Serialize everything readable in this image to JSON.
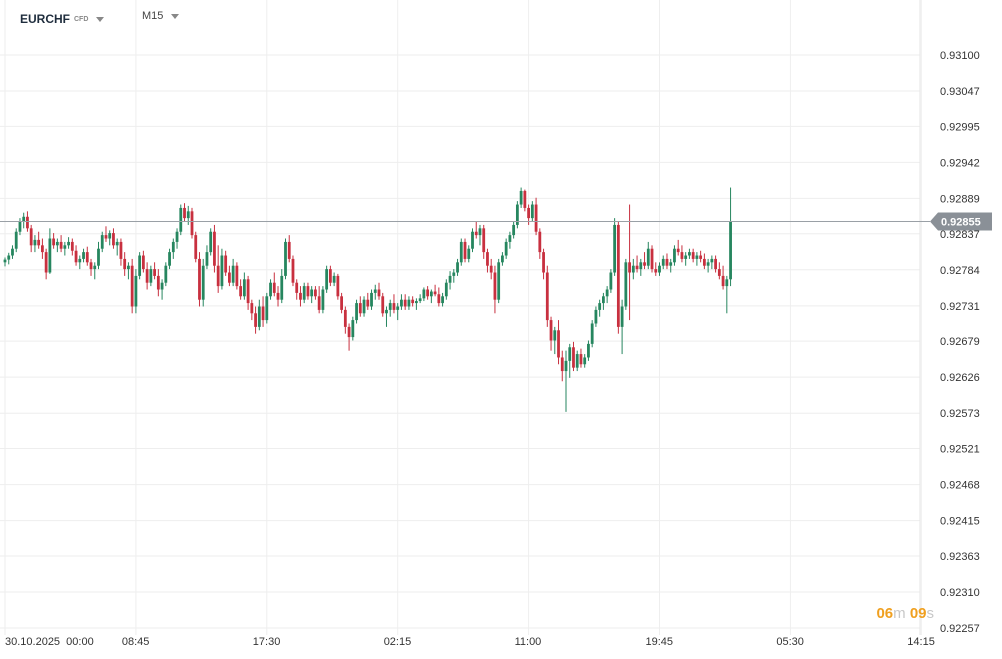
{
  "header": {
    "symbol": "EURCHF",
    "instrument_type": "CFD",
    "timeframe": "M15"
  },
  "countdown": {
    "minutes": "06",
    "m_unit": "m",
    "seconds": "09",
    "s_unit": "s"
  },
  "colors": {
    "up": "#26865f",
    "down": "#c8303f",
    "grid": "#eeeeee",
    "price_line": "#9aa0a6",
    "price_label_bg": "#8a9097",
    "countdown": "#f0a020"
  },
  "chart_data": {
    "type": "candlestick",
    "title": "",
    "xlabel": "",
    "ylabel": "",
    "ylim": [
      0.92231,
      0.93153
    ],
    "y_ticks": [
      "0.93100",
      "0.93047",
      "0.92995",
      "0.92942",
      "0.92889",
      "0.92837",
      "0.92784",
      "0.92731",
      "0.92679",
      "0.92626",
      "0.92573",
      "0.92521",
      "0.92468",
      "0.92415",
      "0.92363",
      "0.92310",
      "0.92257"
    ],
    "x_ticks": [
      {
        "label": "30.10.2025  00:00",
        "index": 0
      },
      {
        "label": "08:45",
        "index": 35
      },
      {
        "label": "17:30",
        "index": 70
      },
      {
        "label": "02:15",
        "index": 105
      },
      {
        "label": "11:00",
        "index": 140
      },
      {
        "label": "19:45",
        "index": 175
      },
      {
        "label": "05:30",
        "index": 210
      },
      {
        "label": "14:15",
        "index": 245
      }
    ],
    "current_price": "0.92855",
    "candles": [
      [
        0.92795,
        0.92802,
        0.92789,
        0.92799
      ],
      [
        0.92799,
        0.92809,
        0.92792,
        0.92805
      ],
      [
        0.92805,
        0.9282,
        0.928,
        0.92815
      ],
      [
        0.92815,
        0.92845,
        0.9281,
        0.9284
      ],
      [
        0.9284,
        0.9286,
        0.92835,
        0.92855
      ],
      [
        0.92855,
        0.92868,
        0.92845,
        0.92862
      ],
      [
        0.92862,
        0.9287,
        0.9284,
        0.92845
      ],
      [
        0.92845,
        0.9285,
        0.9281,
        0.9282
      ],
      [
        0.9282,
        0.92835,
        0.9281,
        0.92828
      ],
      [
        0.92828,
        0.9284,
        0.92815,
        0.9282
      ],
      [
        0.9282,
        0.9283,
        0.928,
        0.9281
      ],
      [
        0.9281,
        0.92815,
        0.9277,
        0.9278
      ],
      [
        0.9278,
        0.92845,
        0.92778,
        0.9283
      ],
      [
        0.9283,
        0.92838,
        0.92815,
        0.9282
      ],
      [
        0.9282,
        0.9283,
        0.9281,
        0.92825
      ],
      [
        0.92825,
        0.92835,
        0.9281,
        0.92815
      ],
      [
        0.92815,
        0.92825,
        0.92805,
        0.9282
      ],
      [
        0.9282,
        0.92832,
        0.92815,
        0.92825
      ],
      [
        0.92825,
        0.9283,
        0.92805,
        0.92812
      ],
      [
        0.92812,
        0.9282,
        0.9279,
        0.92795
      ],
      [
        0.92795,
        0.92805,
        0.92785,
        0.928
      ],
      [
        0.928,
        0.92815,
        0.92795,
        0.9281
      ],
      [
        0.9281,
        0.92818,
        0.9279,
        0.92795
      ],
      [
        0.92795,
        0.928,
        0.92775,
        0.92785
      ],
      [
        0.92785,
        0.92795,
        0.9277,
        0.9279
      ],
      [
        0.9279,
        0.92825,
        0.92785,
        0.92815
      ],
      [
        0.92815,
        0.9284,
        0.9281,
        0.92835
      ],
      [
        0.92835,
        0.92848,
        0.92825,
        0.9283
      ],
      [
        0.9283,
        0.92842,
        0.9282,
        0.92838
      ],
      [
        0.92838,
        0.92845,
        0.92815,
        0.9282
      ],
      [
        0.9282,
        0.9283,
        0.92805,
        0.92825
      ],
      [
        0.92825,
        0.9283,
        0.9279,
        0.928
      ],
      [
        0.928,
        0.9281,
        0.92775,
        0.92785
      ],
      [
        0.92785,
        0.92795,
        0.9277,
        0.9279
      ],
      [
        0.9279,
        0.928,
        0.9272,
        0.9273
      ],
      [
        0.9273,
        0.92785,
        0.9272,
        0.92775
      ],
      [
        0.92775,
        0.9281,
        0.9277,
        0.92805
      ],
      [
        0.92805,
        0.92812,
        0.9278,
        0.92785
      ],
      [
        0.92785,
        0.92795,
        0.92755,
        0.92765
      ],
      [
        0.92765,
        0.9279,
        0.9276,
        0.92785
      ],
      [
        0.92785,
        0.92795,
        0.9277,
        0.92775
      ],
      [
        0.92775,
        0.92785,
        0.92745,
        0.92755
      ],
      [
        0.92755,
        0.9277,
        0.9274,
        0.92765
      ],
      [
        0.92765,
        0.92795,
        0.9276,
        0.9279
      ],
      [
        0.9279,
        0.92815,
        0.92785,
        0.9281
      ],
      [
        0.9281,
        0.9283,
        0.928,
        0.92825
      ],
      [
        0.92825,
        0.92845,
        0.92815,
        0.9284
      ],
      [
        0.9284,
        0.9288,
        0.92835,
        0.92875
      ],
      [
        0.92875,
        0.92882,
        0.92855,
        0.9286
      ],
      [
        0.9286,
        0.92878,
        0.9285,
        0.9287
      ],
      [
        0.9287,
        0.92875,
        0.9283,
        0.92835
      ],
      [
        0.92835,
        0.9284,
        0.92795,
        0.928
      ],
      [
        0.928,
        0.9281,
        0.9273,
        0.9274
      ],
      [
        0.9274,
        0.928,
        0.9273,
        0.9279
      ],
      [
        0.9279,
        0.9282,
        0.92785,
        0.9281
      ],
      [
        0.9281,
        0.92845,
        0.92805,
        0.9284
      ],
      [
        0.9284,
        0.9285,
        0.9278,
        0.9279
      ],
      [
        0.9279,
        0.9282,
        0.9275,
        0.9276
      ],
      [
        0.9276,
        0.92815,
        0.92755,
        0.92805
      ],
      [
        0.92805,
        0.92812,
        0.92775,
        0.9278
      ],
      [
        0.9278,
        0.9279,
        0.9276,
        0.92765
      ],
      [
        0.92765,
        0.928,
        0.9276,
        0.9279
      ],
      [
        0.9279,
        0.92795,
        0.92755,
        0.9276
      ],
      [
        0.9276,
        0.9277,
        0.9274,
        0.92745
      ],
      [
        0.92745,
        0.9278,
        0.9274,
        0.9277
      ],
      [
        0.9277,
        0.92775,
        0.92725,
        0.92735
      ],
      [
        0.92735,
        0.9274,
        0.9271,
        0.9272
      ],
      [
        0.9272,
        0.9273,
        0.9269,
        0.927
      ],
      [
        0.927,
        0.9274,
        0.92695,
        0.9273
      ],
      [
        0.9273,
        0.92745,
        0.927,
        0.9271
      ],
      [
        0.9271,
        0.9275,
        0.92705,
        0.92745
      ],
      [
        0.92745,
        0.9277,
        0.9274,
        0.92765
      ],
      [
        0.92765,
        0.9278,
        0.92745,
        0.9275
      ],
      [
        0.9275,
        0.9276,
        0.9273,
        0.9274
      ],
      [
        0.9274,
        0.92785,
        0.92735,
        0.92775
      ],
      [
        0.92775,
        0.9283,
        0.9277,
        0.92825
      ],
      [
        0.92825,
        0.92835,
        0.92795,
        0.928
      ],
      [
        0.928,
        0.92805,
        0.9276,
        0.92765
      ],
      [
        0.92765,
        0.9277,
        0.9274,
        0.9275
      ],
      [
        0.9275,
        0.9276,
        0.9273,
        0.9274
      ],
      [
        0.9274,
        0.92765,
        0.92735,
        0.9276
      ],
      [
        0.9276,
        0.92765,
        0.9274,
        0.92745
      ],
      [
        0.92745,
        0.9276,
        0.92735,
        0.92755
      ],
      [
        0.92755,
        0.9276,
        0.9274,
        0.92745
      ],
      [
        0.92745,
        0.9276,
        0.9272,
        0.92725
      ],
      [
        0.92725,
        0.9276,
        0.9272,
        0.92755
      ],
      [
        0.92755,
        0.9279,
        0.9275,
        0.92785
      ],
      [
        0.92785,
        0.9279,
        0.9276,
        0.92765
      ],
      [
        0.92765,
        0.9278,
        0.9276,
        0.92775
      ],
      [
        0.92775,
        0.92778,
        0.9274,
        0.92745
      ],
      [
        0.92745,
        0.9275,
        0.9272,
        0.92725
      ],
      [
        0.92725,
        0.9273,
        0.9269,
        0.927
      ],
      [
        0.927,
        0.92705,
        0.92665,
        0.92685
      ],
      [
        0.92685,
        0.92715,
        0.9268,
        0.9271
      ],
      [
        0.9271,
        0.9274,
        0.92705,
        0.92735
      ],
      [
        0.92735,
        0.92745,
        0.92715,
        0.9272
      ],
      [
        0.9272,
        0.92745,
        0.92715,
        0.9274
      ],
      [
        0.9274,
        0.9275,
        0.92725,
        0.9273
      ],
      [
        0.9273,
        0.92755,
        0.92725,
        0.9275
      ],
      [
        0.9275,
        0.92762,
        0.9274,
        0.92755
      ],
      [
        0.92755,
        0.92765,
        0.9274,
        0.92745
      ],
      [
        0.92745,
        0.9275,
        0.92715,
        0.9272
      ],
      [
        0.9272,
        0.9273,
        0.927,
        0.92725
      ],
      [
        0.92725,
        0.9274,
        0.92715,
        0.92735
      ],
      [
        0.92735,
        0.92748,
        0.9272,
        0.92725
      ],
      [
        0.92725,
        0.92735,
        0.9271,
        0.9273
      ],
      [
        0.9273,
        0.92748,
        0.92725,
        0.9274
      ],
      [
        0.9274,
        0.92748,
        0.92725,
        0.9273
      ],
      [
        0.9273,
        0.92745,
        0.92725,
        0.9274
      ],
      [
        0.9274,
        0.92745,
        0.9273,
        0.92735
      ],
      [
        0.92735,
        0.92742,
        0.92725,
        0.92738
      ],
      [
        0.92738,
        0.92748,
        0.92735,
        0.92742
      ],
      [
        0.92742,
        0.92758,
        0.92738,
        0.92755
      ],
      [
        0.92755,
        0.9276,
        0.9274,
        0.92745
      ],
      [
        0.92745,
        0.92755,
        0.92735,
        0.92752
      ],
      [
        0.92752,
        0.92762,
        0.92745,
        0.92748
      ],
      [
        0.92748,
        0.92758,
        0.9273,
        0.92735
      ],
      [
        0.92735,
        0.9275,
        0.9273,
        0.92745
      ],
      [
        0.92745,
        0.9277,
        0.9274,
        0.92765
      ],
      [
        0.92765,
        0.92782,
        0.92755,
        0.92775
      ],
      [
        0.92775,
        0.92785,
        0.92765,
        0.9278
      ],
      [
        0.9278,
        0.928,
        0.92775,
        0.92795
      ],
      [
        0.92795,
        0.9283,
        0.9279,
        0.92825
      ],
      [
        0.92825,
        0.9283,
        0.92795,
        0.928
      ],
      [
        0.928,
        0.9282,
        0.92795,
        0.92815
      ],
      [
        0.92815,
        0.92845,
        0.9281,
        0.9284
      ],
      [
        0.9284,
        0.92855,
        0.9283,
        0.92835
      ],
      [
        0.92835,
        0.9285,
        0.9282,
        0.92845
      ],
      [
        0.92845,
        0.9285,
        0.928,
        0.9281
      ],
      [
        0.9281,
        0.92815,
        0.9278,
        0.9279
      ],
      [
        0.9279,
        0.928,
        0.9277,
        0.9278
      ],
      [
        0.9278,
        0.9279,
        0.9272,
        0.9274
      ],
      [
        0.9274,
        0.928,
        0.92735,
        0.92795
      ],
      [
        0.92795,
        0.9281,
        0.9279,
        0.92805
      ],
      [
        0.92805,
        0.9283,
        0.928,
        0.92825
      ],
      [
        0.92825,
        0.9284,
        0.92815,
        0.92835
      ],
      [
        0.92835,
        0.92855,
        0.9283,
        0.9285
      ],
      [
        0.9285,
        0.92885,
        0.92845,
        0.9288
      ],
      [
        0.9288,
        0.92905,
        0.92875,
        0.929
      ],
      [
        0.929,
        0.92902,
        0.9287,
        0.92875
      ],
      [
        0.92875,
        0.9288,
        0.9285,
        0.9286
      ],
      [
        0.9286,
        0.92885,
        0.92855,
        0.9288
      ],
      [
        0.9288,
        0.9289,
        0.92835,
        0.9284
      ],
      [
        0.9284,
        0.92845,
        0.928,
        0.9281
      ],
      [
        0.9281,
        0.92815,
        0.9277,
        0.9278
      ],
      [
        0.9278,
        0.9279,
        0.927,
        0.9271
      ],
      [
        0.9271,
        0.92715,
        0.92665,
        0.9268
      ],
      [
        0.9268,
        0.927,
        0.9266,
        0.92695
      ],
      [
        0.92695,
        0.9271,
        0.92645,
        0.92655
      ],
      [
        0.92655,
        0.92665,
        0.9262,
        0.92635
      ],
      [
        0.92635,
        0.92665,
        0.92575,
        0.9265
      ],
      [
        0.9265,
        0.92675,
        0.92625,
        0.9267
      ],
      [
        0.9267,
        0.92678,
        0.92635,
        0.9264
      ],
      [
        0.9264,
        0.92665,
        0.92635,
        0.9266
      ],
      [
        0.9266,
        0.92668,
        0.9264,
        0.92645
      ],
      [
        0.92645,
        0.9266,
        0.9264,
        0.92655
      ],
      [
        0.92655,
        0.9268,
        0.9265,
        0.92675
      ],
      [
        0.92675,
        0.9271,
        0.9267,
        0.92705
      ],
      [
        0.92705,
        0.9273,
        0.927,
        0.92725
      ],
      [
        0.92725,
        0.9274,
        0.92715,
        0.92735
      ],
      [
        0.92735,
        0.9275,
        0.92725,
        0.92745
      ],
      [
        0.92745,
        0.9276,
        0.92735,
        0.92755
      ],
      [
        0.92755,
        0.92785,
        0.9275,
        0.9278
      ],
      [
        0.9278,
        0.9286,
        0.92775,
        0.9285
      ],
      [
        0.9285,
        0.92855,
        0.9269,
        0.927
      ],
      [
        0.927,
        0.9274,
        0.9266,
        0.9273
      ],
      [
        0.9273,
        0.928,
        0.92725,
        0.92795
      ],
      [
        0.92795,
        0.9288,
        0.9271,
        0.9278
      ],
      [
        0.9278,
        0.928,
        0.9277,
        0.9279
      ],
      [
        0.9279,
        0.92805,
        0.9278,
        0.92785
      ],
      [
        0.92785,
        0.928,
        0.92775,
        0.92795
      ],
      [
        0.92795,
        0.9281,
        0.92785,
        0.9279
      ],
      [
        0.9279,
        0.92825,
        0.92785,
        0.92815
      ],
      [
        0.92815,
        0.9282,
        0.9278,
        0.92785
      ],
      [
        0.92785,
        0.92795,
        0.92775,
        0.9278
      ],
      [
        0.9278,
        0.92795,
        0.92775,
        0.9279
      ],
      [
        0.9279,
        0.92805,
        0.92785,
        0.928
      ],
      [
        0.928,
        0.92808,
        0.92785,
        0.9279
      ],
      [
        0.9279,
        0.928,
        0.9278,
        0.92795
      ],
      [
        0.92795,
        0.9282,
        0.9279,
        0.92815
      ],
      [
        0.92815,
        0.92828,
        0.92805,
        0.9281
      ],
      [
        0.9281,
        0.9282,
        0.92795,
        0.928
      ],
      [
        0.928,
        0.9281,
        0.9279,
        0.92805
      ],
      [
        0.92805,
        0.92815,
        0.928,
        0.9281
      ],
      [
        0.9281,
        0.92815,
        0.92795,
        0.928
      ],
      [
        0.928,
        0.9281,
        0.9279,
        0.92805
      ],
      [
        0.92805,
        0.92812,
        0.92795,
        0.928
      ],
      [
        0.928,
        0.92808,
        0.92785,
        0.9279
      ],
      [
        0.9279,
        0.928,
        0.9278,
        0.92795
      ],
      [
        0.92795,
        0.92805,
        0.92785,
        0.928
      ],
      [
        0.928,
        0.92805,
        0.9278,
        0.92785
      ],
      [
        0.92785,
        0.92795,
        0.9277,
        0.92775
      ],
      [
        0.92775,
        0.9279,
        0.92755,
        0.9276
      ],
      [
        0.9276,
        0.92775,
        0.9272,
        0.9277
      ],
      [
        0.9277,
        0.92905,
        0.9276,
        0.92855
      ]
    ]
  }
}
